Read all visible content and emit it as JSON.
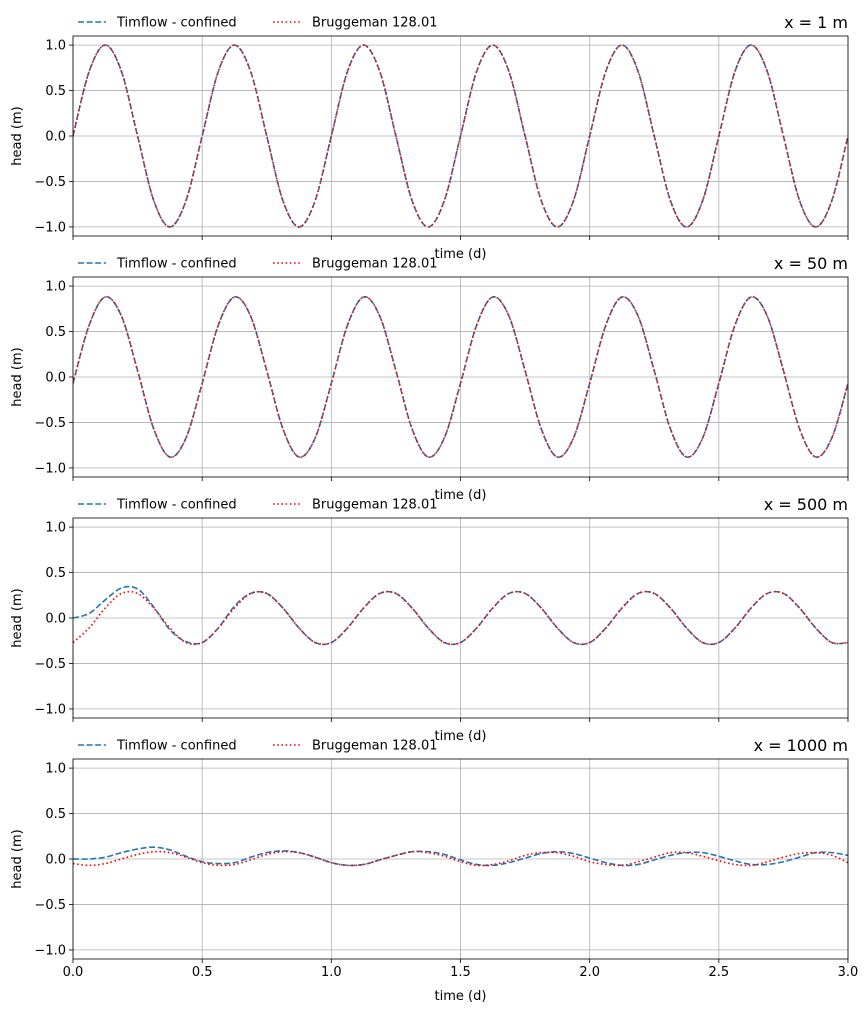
{
  "chart_data": [
    {
      "type": "line",
      "title": "x = 1 m",
      "xlabel": "time (d)",
      "ylabel": "head (m)",
      "xlim": [
        0,
        3
      ],
      "ylim": [
        -1.1,
        1.1
      ],
      "xticks": [
        0.0,
        0.5,
        1.0,
        1.5,
        2.0,
        2.5,
        3.0
      ],
      "xtick_labels_visible": false,
      "yticks": [
        "1.0",
        "0.5",
        "0.0",
        "−0.5",
        "−1.0"
      ],
      "ytick_values": [
        1.0,
        0.5,
        0.0,
        -0.5,
        -1.0
      ],
      "grid": true,
      "legend": "top-left",
      "x": [
        0.0,
        0.0625,
        0.125,
        0.1875,
        0.25,
        0.3125,
        0.375,
        0.4375,
        0.5,
        0.5625,
        0.625,
        0.6875,
        0.75,
        0.8125,
        0.875,
        0.9375,
        1.0,
        1.0625,
        1.125,
        1.1875,
        1.25,
        1.3125,
        1.375,
        1.4375,
        1.5,
        1.5625,
        1.625,
        1.6875,
        1.75,
        1.8125,
        1.875,
        1.9375,
        2.0,
        2.0625,
        2.125,
        2.1875,
        2.25,
        2.3125,
        2.375,
        2.4375,
        2.5,
        2.5625,
        2.625,
        2.6875,
        2.75,
        2.8125,
        2.875,
        2.9375,
        3.0
      ],
      "series": [
        {
          "name": "Timflow - confined",
          "style": "dashed",
          "color": "#1f77b4",
          "values": [
            0.0,
            0.71,
            1.0,
            0.71,
            0.0,
            -0.71,
            -1.0,
            -0.71,
            0.0,
            0.71,
            1.0,
            0.71,
            0.0,
            -0.71,
            -1.0,
            -0.71,
            0.0,
            0.71,
            1.0,
            0.71,
            0.0,
            -0.71,
            -1.0,
            -0.71,
            0.0,
            0.71,
            1.0,
            0.71,
            0.0,
            -0.71,
            -1.0,
            -0.71,
            0.0,
            0.71,
            1.0,
            0.71,
            0.0,
            -0.71,
            -1.0,
            -0.71,
            0.0,
            0.71,
            1.0,
            0.71,
            0.0,
            -0.71,
            -1.0,
            -0.71,
            0.0
          ]
        },
        {
          "name": "Bruggeman 128.01",
          "style": "dotted",
          "color": "#ff0000",
          "values": [
            0.0,
            0.71,
            1.0,
            0.71,
            0.0,
            -0.71,
            -1.0,
            -0.71,
            0.0,
            0.71,
            1.0,
            0.71,
            0.0,
            -0.71,
            -1.0,
            -0.71,
            0.0,
            0.71,
            1.0,
            0.71,
            0.0,
            -0.71,
            -1.0,
            -0.71,
            0.0,
            0.71,
            1.0,
            0.71,
            0.0,
            -0.71,
            -1.0,
            -0.71,
            0.0,
            0.71,
            1.0,
            0.71,
            0.0,
            -0.71,
            -1.0,
            -0.71,
            0.0,
            0.71,
            1.0,
            0.71,
            0.0,
            -0.71,
            -1.0,
            -0.71,
            0.0
          ]
        }
      ]
    },
    {
      "type": "line",
      "title": "x = 50 m",
      "xlabel": "time (d)",
      "ylabel": "head (m)",
      "xlim": [
        0,
        3
      ],
      "ylim": [
        -1.1,
        1.1
      ],
      "xticks": [
        0.0,
        0.5,
        1.0,
        1.5,
        2.0,
        2.5,
        3.0
      ],
      "xtick_labels_visible": false,
      "yticks": [
        "1.0",
        "0.5",
        "0.0",
        "−0.5",
        "−1.0"
      ],
      "ytick_values": [
        1.0,
        0.5,
        0.0,
        -0.5,
        -1.0
      ],
      "grid": true,
      "legend": "top-left",
      "x": [
        0.0,
        0.0625,
        0.125,
        0.1875,
        0.25,
        0.3125,
        0.375,
        0.4375,
        0.5,
        0.5625,
        0.625,
        0.6875,
        0.75,
        0.8125,
        0.875,
        0.9375,
        1.0,
        1.0625,
        1.125,
        1.1875,
        1.25,
        1.3125,
        1.375,
        1.4375,
        1.5,
        1.5625,
        1.625,
        1.6875,
        1.75,
        1.8125,
        1.875,
        1.9375,
        2.0,
        2.0625,
        2.125,
        2.1875,
        2.25,
        2.3125,
        2.375,
        2.4375,
        2.5,
        2.5625,
        2.625,
        2.6875,
        2.75,
        2.8125,
        2.875,
        2.9375,
        3.0
      ],
      "series": [
        {
          "name": "Timflow - confined",
          "style": "dashed",
          "color": "#1f77b4",
          "values": [
            -0.07,
            0.57,
            0.88,
            0.67,
            0.07,
            -0.57,
            -0.88,
            -0.67,
            -0.07,
            0.57,
            0.88,
            0.67,
            0.07,
            -0.57,
            -0.88,
            -0.67,
            -0.07,
            0.57,
            0.88,
            0.67,
            0.07,
            -0.57,
            -0.88,
            -0.67,
            -0.07,
            0.57,
            0.88,
            0.67,
            0.07,
            -0.57,
            -0.88,
            -0.67,
            -0.07,
            0.57,
            0.88,
            0.67,
            0.07,
            -0.57,
            -0.88,
            -0.67,
            -0.07,
            0.57,
            0.88,
            0.67,
            0.07,
            -0.57,
            -0.88,
            -0.67,
            -0.07
          ]
        },
        {
          "name": "Bruggeman 128.01",
          "style": "dotted",
          "color": "#ff0000",
          "values": [
            -0.07,
            0.57,
            0.88,
            0.67,
            0.07,
            -0.57,
            -0.88,
            -0.67,
            -0.07,
            0.57,
            0.88,
            0.67,
            0.07,
            -0.57,
            -0.88,
            -0.67,
            -0.07,
            0.57,
            0.88,
            0.67,
            0.07,
            -0.57,
            -0.88,
            -0.67,
            -0.07,
            0.57,
            0.88,
            0.67,
            0.07,
            -0.57,
            -0.88,
            -0.67,
            -0.07,
            0.57,
            0.88,
            0.67,
            0.07,
            -0.57,
            -0.88,
            -0.67,
            -0.07,
            0.57,
            0.88,
            0.67,
            0.07,
            -0.57,
            -0.88,
            -0.67,
            -0.07
          ]
        }
      ]
    },
    {
      "type": "line",
      "title": "x = 500 m",
      "xlabel": "time (d)",
      "ylabel": "head (m)",
      "xlim": [
        0,
        3
      ],
      "ylim": [
        -1.1,
        1.1
      ],
      "xticks": [
        0.0,
        0.5,
        1.0,
        1.5,
        2.0,
        2.5,
        3.0
      ],
      "xtick_labels_visible": false,
      "yticks": [
        "1.0",
        "0.5",
        "0.0",
        "−0.5",
        "−1.0"
      ],
      "ytick_values": [
        1.0,
        0.5,
        0.0,
        -0.5,
        -1.0
      ],
      "grid": true,
      "legend": "top-left",
      "x": [
        0.0,
        0.0625,
        0.125,
        0.1875,
        0.25,
        0.3125,
        0.375,
        0.4375,
        0.5,
        0.5625,
        0.625,
        0.6875,
        0.75,
        0.8125,
        0.875,
        0.9375,
        1.0,
        1.0625,
        1.125,
        1.1875,
        1.25,
        1.3125,
        1.375,
        1.4375,
        1.5,
        1.5625,
        1.625,
        1.6875,
        1.75,
        1.8125,
        1.875,
        1.9375,
        2.0,
        2.0625,
        2.125,
        2.1875,
        2.25,
        2.3125,
        2.375,
        2.4375,
        2.5,
        2.5625,
        2.625,
        2.6875,
        2.75,
        2.8125,
        2.875,
        2.9375,
        3.0
      ],
      "series": [
        {
          "name": "Timflow - confined",
          "style": "dashed",
          "color": "#1f77b4",
          "values": [
            0.0,
            0.05,
            0.2,
            0.33,
            0.32,
            0.12,
            -0.13,
            -0.26,
            -0.27,
            -0.11,
            0.13,
            0.27,
            0.27,
            0.11,
            -0.11,
            -0.27,
            -0.27,
            -0.11,
            0.11,
            0.27,
            0.27,
            0.11,
            -0.11,
            -0.27,
            -0.27,
            -0.11,
            0.11,
            0.27,
            0.27,
            0.11,
            -0.11,
            -0.27,
            -0.27,
            -0.11,
            0.11,
            0.27,
            0.27,
            0.11,
            -0.11,
            -0.27,
            -0.27,
            -0.11,
            0.11,
            0.27,
            0.27,
            0.11,
            -0.11,
            -0.27,
            -0.27
          ]
        },
        {
          "name": "Bruggeman 128.01",
          "style": "dotted",
          "color": "#ff0000",
          "values": [
            -0.27,
            -0.11,
            0.11,
            0.27,
            0.27,
            0.11,
            -0.11,
            -0.27,
            -0.27,
            -0.11,
            0.11,
            0.27,
            0.27,
            0.11,
            -0.11,
            -0.27,
            -0.27,
            -0.11,
            0.11,
            0.27,
            0.27,
            0.11,
            -0.11,
            -0.27,
            -0.27,
            -0.11,
            0.11,
            0.27,
            0.27,
            0.11,
            -0.11,
            -0.27,
            -0.27,
            -0.11,
            0.11,
            0.27,
            0.27,
            0.11,
            -0.11,
            -0.27,
            -0.27,
            -0.11,
            0.11,
            0.27,
            0.27,
            0.11,
            -0.11,
            -0.27,
            -0.27
          ]
        }
      ]
    },
    {
      "type": "line",
      "title": "x = 1000 m",
      "xlabel": "time (d)",
      "ylabel": "head (m)",
      "xlim": [
        0,
        3
      ],
      "ylim": [
        -1.1,
        1.1
      ],
      "xticks": [
        0.0,
        0.5,
        1.0,
        1.5,
        2.0,
        2.5,
        3.0
      ],
      "xtick_labels": [
        "0.0",
        "0.5",
        "1.0",
        "1.5",
        "2.0",
        "2.5",
        "3.0"
      ],
      "xtick_labels_visible": true,
      "yticks": [
        "1.0",
        "0.5",
        "0.0",
        "−0.5",
        "−1.0"
      ],
      "ytick_values": [
        1.0,
        0.5,
        0.0,
        -0.5,
        -1.0
      ],
      "grid": true,
      "legend": "top-left",
      "x": [
        0.0,
        0.0625,
        0.125,
        0.1875,
        0.25,
        0.3125,
        0.375,
        0.4375,
        0.5,
        0.5625,
        0.625,
        0.6875,
        0.75,
        0.8125,
        0.875,
        0.9375,
        1.0,
        1.0625,
        1.125,
        1.1875,
        1.25,
        1.3125,
        1.375,
        1.4375,
        1.5,
        1.5625,
        1.625,
        1.6875,
        1.75,
        1.8125,
        1.875,
        1.9375,
        2.0,
        2.0625,
        2.125,
        2.1875,
        2.25,
        2.3125,
        2.375,
        2.4375,
        2.5,
        2.5625,
        2.625,
        2.6875,
        2.75,
        2.8125,
        2.875,
        2.9375,
        3.0
      ],
      "series": [
        {
          "name": "Timflow - confined",
          "style": "dashed",
          "color": "#1f77b4",
          "values": [
            0.0,
            0.0,
            0.02,
            0.07,
            0.11,
            0.13,
            0.1,
            0.03,
            -0.03,
            -0.05,
            -0.04,
            0.02,
            0.07,
            0.09,
            0.07,
            0.02,
            -0.04,
            -0.07,
            -0.06,
            -0.01,
            0.04,
            0.08,
            0.08,
            0.05,
            -0.01,
            -0.06,
            -0.07,
            -0.04,
            0.01,
            0.06,
            0.08,
            0.06,
            0.01,
            -0.04,
            -0.07,
            -0.06,
            -0.01,
            0.04,
            0.07,
            0.07,
            0.03,
            -0.02,
            -0.06,
            -0.06,
            -0.03,
            0.02,
            0.07,
            0.07,
            0.04
          ]
        },
        {
          "name": "Bruggeman 128.01",
          "style": "dotted",
          "color": "#ff0000",
          "values": [
            -0.05,
            -0.07,
            -0.05,
            0.0,
            0.05,
            0.08,
            0.07,
            0.02,
            -0.04,
            -0.07,
            -0.06,
            -0.01,
            0.05,
            0.08,
            0.07,
            0.02,
            -0.04,
            -0.07,
            -0.06,
            -0.01,
            0.04,
            0.08,
            0.07,
            0.03,
            -0.03,
            -0.07,
            -0.06,
            -0.02,
            0.04,
            0.07,
            0.07,
            0.03,
            -0.03,
            -0.06,
            -0.07,
            -0.03,
            0.02,
            0.07,
            0.07,
            0.03,
            -0.02,
            -0.06,
            -0.07,
            -0.03,
            0.02,
            0.06,
            0.07,
            0.04,
            -0.04
          ]
        }
      ]
    }
  ]
}
